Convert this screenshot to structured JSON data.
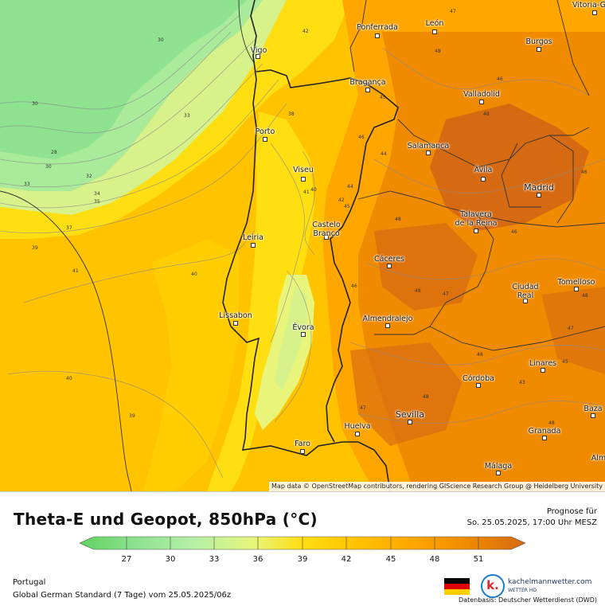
{
  "title": "Theta-E und Geopot, 850hPa (°C)",
  "forecast": {
    "label": "Prognose für",
    "datetime": "So. 25.05.2025, 17:00 Uhr MESZ"
  },
  "legend": {
    "ticks": [
      "27",
      "30",
      "33",
      "36",
      "39",
      "42",
      "45",
      "48",
      "51"
    ],
    "colors": [
      "#5fd35f",
      "#8fe28f",
      "#b6f0a6",
      "#e8f57a",
      "#ffde12",
      "#ffc300",
      "#ffa600",
      "#f08a00",
      "#d66a12"
    ]
  },
  "region": "Portugal",
  "model": "Global German Standard (7 Tage) vom 25.05.2025/06z",
  "brand": {
    "name": "kachelmannwetter.com",
    "sub": "WETTER HD",
    "letter": "k."
  },
  "source": "Datenbasis: Deutscher Wetterdienst (DWD)",
  "attribution": "Map data © OpenStreetMap contributors, rendering GIScience Research Group @ Heidelberg University",
  "cities": [
    {
      "id": "vitoria",
      "name": "Vitoria-G"
    },
    {
      "id": "ponferrada",
      "name": "Ponferrada"
    },
    {
      "id": "leon",
      "name": "León"
    },
    {
      "id": "burgos",
      "name": "Burgos"
    },
    {
      "id": "vigo",
      "name": "Vigo"
    },
    {
      "id": "braganca",
      "name": "Bragança"
    },
    {
      "id": "valladolid",
      "name": "Valladolid"
    },
    {
      "id": "porto",
      "name": "Porto"
    },
    {
      "id": "salamanca",
      "name": "Salamanca"
    },
    {
      "id": "viseu",
      "name": "Viseu"
    },
    {
      "id": "avila",
      "name": "Ávila"
    },
    {
      "id": "madrid",
      "name": "Madrid"
    },
    {
      "id": "talavera",
      "name": "Talavera\nde la Reina"
    },
    {
      "id": "castelo",
      "name": "Castelo\nBranco"
    },
    {
      "id": "leiria",
      "name": "Leiria"
    },
    {
      "id": "caceres",
      "name": "Cáceres"
    },
    {
      "id": "ciudadreal",
      "name": "Ciudad\nReal"
    },
    {
      "id": "tomelloso",
      "name": "Tomelloso"
    },
    {
      "id": "lissabon",
      "name": "Lissabon"
    },
    {
      "id": "almendralejo",
      "name": "Almendralejo"
    },
    {
      "id": "evora",
      "name": "Évora"
    },
    {
      "id": "linares",
      "name": "Linares"
    },
    {
      "id": "cordoba",
      "name": "Córdoba"
    },
    {
      "id": "baza",
      "name": "Baza"
    },
    {
      "id": "sevilla",
      "name": "Sevilla"
    },
    {
      "id": "huelva",
      "name": "Huelva"
    },
    {
      "id": "granada",
      "name": "Granada"
    },
    {
      "id": "faro",
      "name": "Faro"
    },
    {
      "id": "malaga",
      "name": "Málaga"
    },
    {
      "id": "alm",
      "name": "Alm"
    }
  ],
  "contour_values": [
    {
      "id": "c1",
      "v": "30"
    },
    {
      "id": "c2",
      "v": "30"
    },
    {
      "id": "c3",
      "v": "33"
    },
    {
      "id": "c4",
      "v": "28"
    },
    {
      "id": "c5",
      "v": "30"
    },
    {
      "id": "c6",
      "v": "32"
    },
    {
      "id": "c7",
      "v": "33"
    },
    {
      "id": "c8",
      "v": "34"
    },
    {
      "id": "c9",
      "v": "35"
    },
    {
      "id": "c10",
      "v": "37"
    },
    {
      "id": "c11",
      "v": "39"
    },
    {
      "id": "c12",
      "v": "41"
    },
    {
      "id": "c13",
      "v": "40"
    },
    {
      "id": "c14",
      "v": "40"
    },
    {
      "id": "c15",
      "v": "39"
    },
    {
      "id": "c16",
      "v": "42"
    },
    {
      "id": "c17",
      "v": "38"
    },
    {
      "id": "c18",
      "v": "47"
    },
    {
      "id": "c19",
      "v": "48"
    },
    {
      "id": "c20",
      "v": "46"
    },
    {
      "id": "c21",
      "v": "45"
    },
    {
      "id": "c22",
      "v": "46"
    },
    {
      "id": "c23",
      "v": "44"
    },
    {
      "id": "c24",
      "v": "48"
    },
    {
      "id": "c25",
      "v": "46"
    },
    {
      "id": "c26",
      "v": "48"
    },
    {
      "id": "c27",
      "v": "46"
    },
    {
      "id": "c28",
      "v": "48"
    },
    {
      "id": "c29",
      "v": "47"
    },
    {
      "id": "c30",
      "v": "46"
    },
    {
      "id": "c31",
      "v": "48"
    },
    {
      "id": "c32",
      "v": "47"
    },
    {
      "id": "c33",
      "v": "48"
    },
    {
      "id": "c34",
      "v": "45"
    },
    {
      "id": "c35",
      "v": "48"
    },
    {
      "id": "c36",
      "v": "47"
    },
    {
      "id": "c37",
      "v": "48"
    },
    {
      "id": "c38",
      "v": "43"
    },
    {
      "id": "c39",
      "v": "44"
    },
    {
      "id": "c40",
      "v": "45"
    },
    {
      "id": "c41",
      "v": "42"
    },
    {
      "id": "c42",
      "v": "41"
    },
    {
      "id": "c43",
      "v": "40"
    }
  ]
}
